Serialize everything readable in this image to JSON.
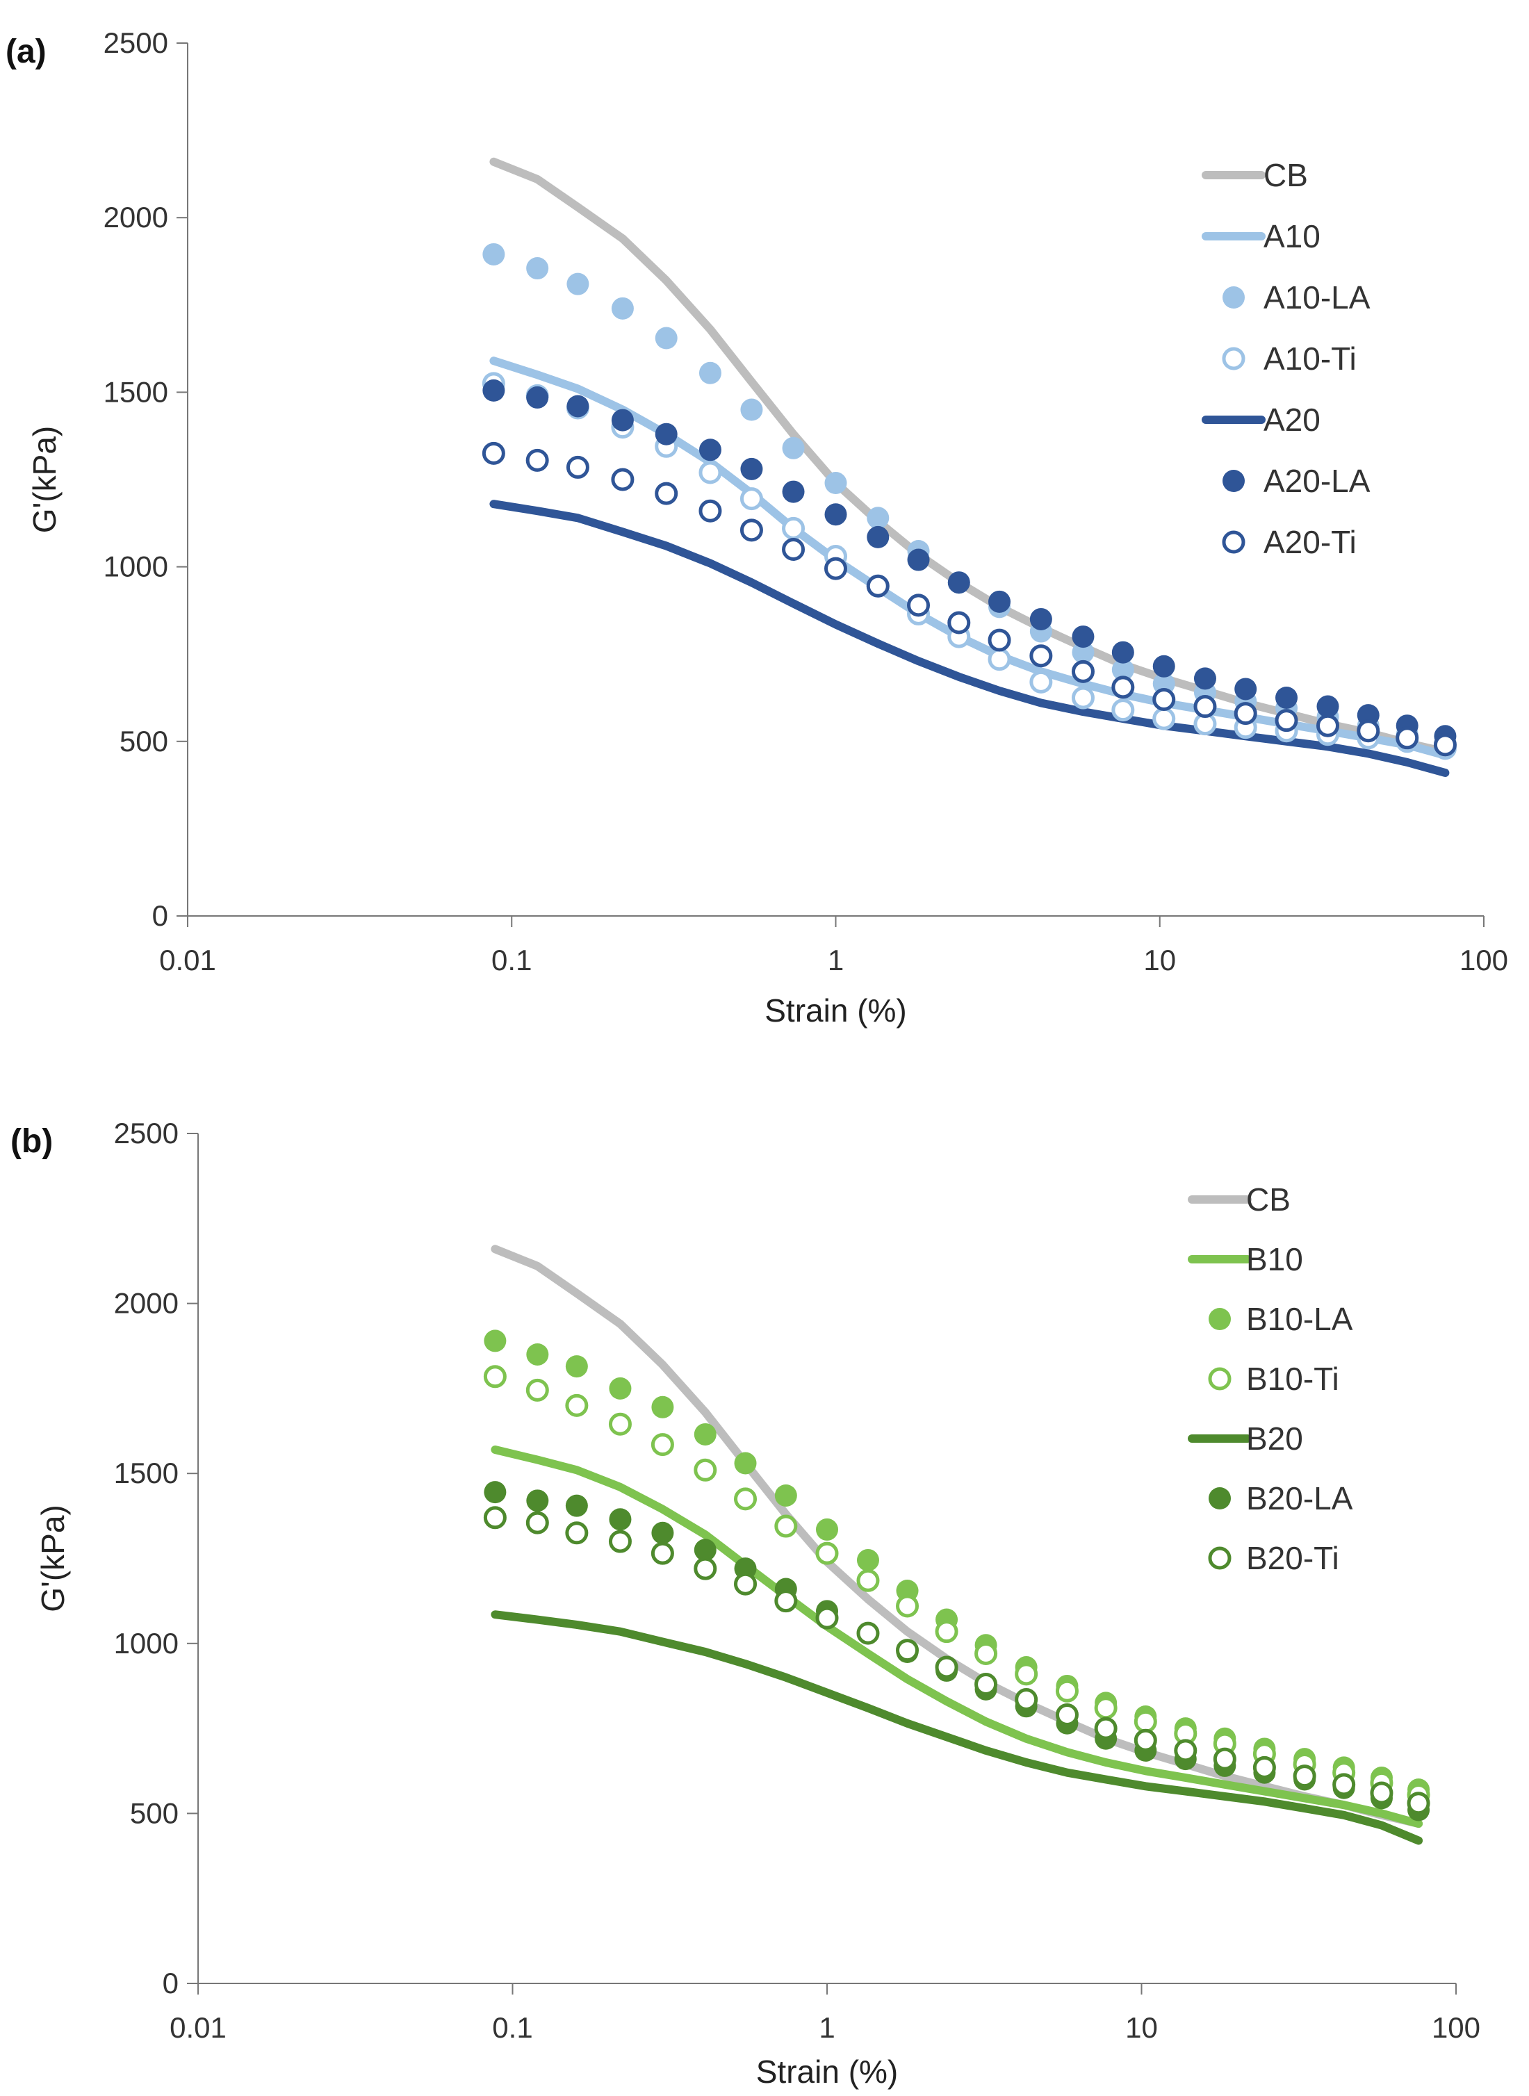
{
  "colors": {
    "CB": "#bdbdbd",
    "light_blue": "#9dc3e6",
    "dark_blue": "#2f5597",
    "light_green": "#7ec34f",
    "dark_green": "#4e8a2d",
    "axis": "#777777"
  },
  "chart_data": [
    {
      "panel": "(a)",
      "type": "line",
      "xscale": "log",
      "xlabel": "Strain (%)",
      "ylabel": "G'(kPa)",
      "xlim": [
        0.01,
        100
      ],
      "ylim": [
        0,
        2500
      ],
      "xticks": [
        "0.01",
        "0.1",
        "1",
        "10",
        "100"
      ],
      "yticks": [
        "0",
        "500",
        "1000",
        "1500",
        "2000",
        "2500"
      ],
      "legend_position": "top-right",
      "x": [
        0.088,
        0.12,
        0.16,
        0.22,
        0.3,
        0.41,
        0.55,
        0.74,
        1.0,
        1.35,
        1.8,
        2.4,
        3.2,
        4.3,
        5.8,
        7.7,
        10.3,
        13.8,
        18.4,
        24.6,
        33,
        44,
        58,
        76
      ],
      "series": [
        {
          "name": "CB",
          "style": "line",
          "color": "#bdbdbd",
          "values": [
            2160,
            2110,
            2030,
            1940,
            1820,
            1680,
            1530,
            1380,
            1240,
            1130,
            1035,
            955,
            885,
            825,
            770,
            720,
            680,
            645,
            610,
            580,
            550,
            525,
            495,
            470
          ]
        },
        {
          "name": "A10",
          "style": "line",
          "color": "#9dc3e6",
          "values": [
            1590,
            1550,
            1510,
            1450,
            1380,
            1300,
            1210,
            1110,
            1020,
            940,
            865,
            800,
            745,
            700,
            665,
            635,
            610,
            590,
            570,
            550,
            530,
            510,
            490,
            460
          ]
        },
        {
          "name": "A10-LA",
          "style": "filled",
          "color": "#9dc3e6",
          "values": [
            1895,
            1855,
            1810,
            1740,
            1655,
            1555,
            1450,
            1340,
            1240,
            1140,
            1045,
            955,
            885,
            815,
            755,
            705,
            665,
            640,
            615,
            595,
            570,
            545,
            520,
            495
          ]
        },
        {
          "name": "A10-Ti",
          "style": "open",
          "color": "#9dc3e6",
          "values": [
            1525,
            1490,
            1455,
            1400,
            1345,
            1270,
            1195,
            1110,
            1030,
            945,
            865,
            800,
            735,
            670,
            625,
            590,
            565,
            550,
            540,
            530,
            520,
            510,
            500,
            480
          ]
        },
        {
          "name": "A20",
          "style": "line",
          "color": "#2f5597",
          "values": [
            1180,
            1160,
            1140,
            1100,
            1060,
            1010,
            955,
            895,
            835,
            780,
            730,
            685,
            645,
            610,
            585,
            565,
            545,
            530,
            515,
            500,
            485,
            465,
            440,
            410
          ]
        },
        {
          "name": "A20-LA",
          "style": "filled",
          "color": "#2f5597",
          "values": [
            1505,
            1485,
            1460,
            1420,
            1380,
            1335,
            1280,
            1215,
            1150,
            1085,
            1020,
            955,
            900,
            850,
            800,
            755,
            715,
            680,
            650,
            625,
            600,
            575,
            545,
            515
          ]
        },
        {
          "name": "A20-Ti",
          "style": "open",
          "color": "#2f5597",
          "values": [
            1325,
            1305,
            1285,
            1250,
            1210,
            1160,
            1105,
            1050,
            995,
            945,
            890,
            840,
            790,
            745,
            700,
            655,
            620,
            600,
            580,
            560,
            545,
            530,
            510,
            490
          ]
        }
      ]
    },
    {
      "panel": "(b)",
      "type": "line",
      "xscale": "log",
      "xlabel": "Strain (%)",
      "ylabel": "G'(kPa)",
      "xlim": [
        0.01,
        100
      ],
      "ylim": [
        0,
        2500
      ],
      "xticks": [
        "0.01",
        "0.1",
        "1",
        "10",
        "100"
      ],
      "yticks": [
        "0",
        "500",
        "1000",
        "1500",
        "2000",
        "2500"
      ],
      "legend_position": "top-right",
      "x": [
        0.088,
        0.12,
        0.16,
        0.22,
        0.3,
        0.41,
        0.55,
        0.74,
        1.0,
        1.35,
        1.8,
        2.4,
        3.2,
        4.3,
        5.8,
        7.7,
        10.3,
        13.8,
        18.4,
        24.6,
        33,
        44,
        58,
        76
      ],
      "series": [
        {
          "name": "CB",
          "style": "line",
          "color": "#bdbdbd",
          "values": [
            2160,
            2110,
            2030,
            1940,
            1820,
            1680,
            1530,
            1380,
            1240,
            1130,
            1035,
            955,
            885,
            825,
            770,
            720,
            680,
            645,
            610,
            580,
            550,
            525,
            495,
            470
          ]
        },
        {
          "name": "B10",
          "style": "line",
          "color": "#7ec34f",
          "values": [
            1570,
            1540,
            1510,
            1460,
            1395,
            1320,
            1230,
            1140,
            1050,
            970,
            895,
            830,
            770,
            720,
            680,
            650,
            625,
            605,
            585,
            565,
            545,
            525,
            500,
            470
          ]
        },
        {
          "name": "B10-LA",
          "style": "filled",
          "color": "#7ec34f",
          "values": [
            1890,
            1850,
            1815,
            1750,
            1695,
            1615,
            1530,
            1435,
            1335,
            1245,
            1155,
            1070,
            995,
            930,
            875,
            825,
            785,
            750,
            720,
            690,
            660,
            635,
            605,
            570
          ]
        },
        {
          "name": "B10-Ti",
          "style": "open",
          "color": "#7ec34f",
          "values": [
            1785,
            1745,
            1700,
            1645,
            1585,
            1510,
            1425,
            1345,
            1265,
            1185,
            1110,
            1035,
            970,
            910,
            860,
            810,
            770,
            735,
            705,
            675,
            645,
            620,
            590,
            555
          ]
        },
        {
          "name": "B20",
          "style": "line",
          "color": "#4e8a2d",
          "values": [
            1085,
            1070,
            1055,
            1035,
            1005,
            975,
            940,
            900,
            855,
            810,
            765,
            725,
            685,
            650,
            620,
            600,
            580,
            565,
            550,
            535,
            515,
            495,
            465,
            420
          ]
        },
        {
          "name": "B20-LA",
          "style": "filled",
          "color": "#4e8a2d",
          "values": [
            1445,
            1420,
            1405,
            1365,
            1325,
            1275,
            1220,
            1160,
            1095,
            1030,
            975,
            920,
            865,
            815,
            765,
            720,
            685,
            660,
            640,
            620,
            600,
            575,
            545,
            510
          ]
        },
        {
          "name": "B20-Ti",
          "style": "open",
          "color": "#4e8a2d",
          "values": [
            1370,
            1355,
            1325,
            1300,
            1265,
            1220,
            1175,
            1125,
            1075,
            1030,
            980,
            930,
            880,
            835,
            790,
            750,
            715,
            685,
            660,
            635,
            610,
            585,
            560,
            530
          ]
        }
      ]
    }
  ]
}
